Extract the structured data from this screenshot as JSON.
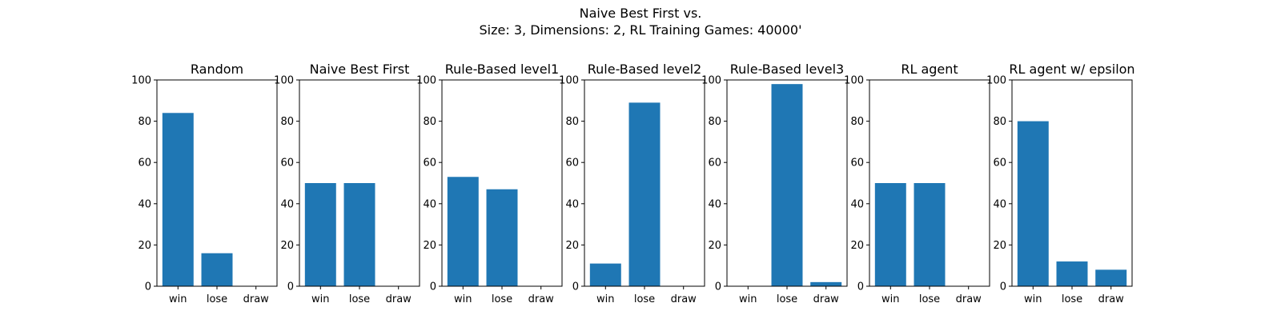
{
  "figure": {
    "title": "Naive Best First vs.\nSize: 3, Dimensions: 2, RL Training Games: 40000'"
  },
  "style": {
    "bar_color": "#1f77b4",
    "axis_color": "#000000",
    "background": "#ffffff"
  },
  "chart_data": [
    {
      "type": "bar",
      "title": "Random",
      "categories": [
        "win",
        "lose",
        "draw"
      ],
      "values": [
        84,
        16,
        0
      ],
      "ylim": [
        0,
        100
      ],
      "yticks": [
        0,
        20,
        40,
        60,
        80,
        100
      ],
      "grid": false
    },
    {
      "type": "bar",
      "title": "Naive Best First",
      "categories": [
        "win",
        "lose",
        "draw"
      ],
      "values": [
        50,
        50,
        0
      ],
      "ylim": [
        0,
        100
      ],
      "yticks": [
        0,
        20,
        40,
        60,
        80,
        100
      ],
      "grid": false
    },
    {
      "type": "bar",
      "title": "Rule-Based level1",
      "categories": [
        "win",
        "lose",
        "draw"
      ],
      "values": [
        53,
        47,
        0
      ],
      "ylim": [
        0,
        100
      ],
      "yticks": [
        0,
        20,
        40,
        60,
        80,
        100
      ],
      "grid": false
    },
    {
      "type": "bar",
      "title": "Rule-Based level2",
      "categories": [
        "win",
        "lose",
        "draw"
      ],
      "values": [
        11,
        89,
        0
      ],
      "ylim": [
        0,
        100
      ],
      "yticks": [
        0,
        20,
        40,
        60,
        80,
        100
      ],
      "grid": false
    },
    {
      "type": "bar",
      "title": "Rule-Based level3",
      "categories": [
        "win",
        "lose",
        "draw"
      ],
      "values": [
        0,
        98,
        2
      ],
      "ylim": [
        0,
        100
      ],
      "yticks": [
        0,
        20,
        40,
        60,
        80,
        100
      ],
      "grid": false
    },
    {
      "type": "bar",
      "title": "RL agent",
      "categories": [
        "win",
        "lose",
        "draw"
      ],
      "values": [
        50,
        50,
        0
      ],
      "ylim": [
        0,
        100
      ],
      "yticks": [
        0,
        20,
        40,
        60,
        80,
        100
      ],
      "grid": false
    },
    {
      "type": "bar",
      "title": "RL agent w/ epsilon",
      "categories": [
        "win",
        "lose",
        "draw"
      ],
      "values": [
        80,
        12,
        8
      ],
      "ylim": [
        0,
        100
      ],
      "yticks": [
        0,
        20,
        40,
        60,
        80,
        100
      ],
      "grid": false
    }
  ]
}
